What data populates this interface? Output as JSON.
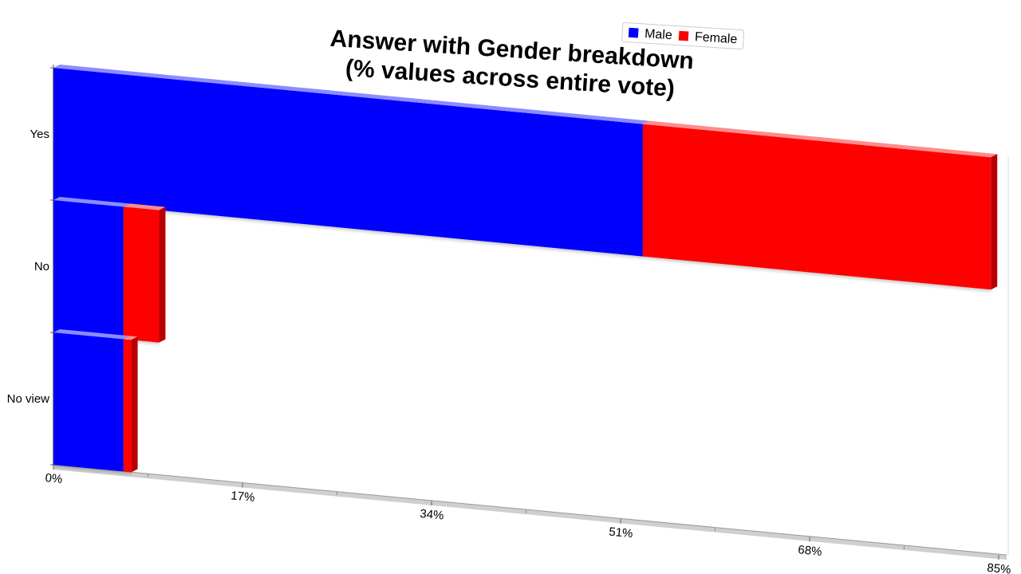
{
  "chart_data": {
    "type": "bar",
    "orientation": "horizontal",
    "stacked": true,
    "title_lines": [
      "Answer with Gender breakdown",
      "(% values across entire vote)"
    ],
    "categories": [
      "Yes",
      "No",
      "No view"
    ],
    "series": [
      {
        "name": "Male",
        "color": "#0000ff",
        "values": [
          53,
          6.3,
          6.3
        ]
      },
      {
        "name": "Female",
        "color": "#ff0000",
        "values": [
          31.3,
          3.2,
          0.7
        ]
      }
    ],
    "xlim": [
      0,
      85
    ],
    "x_ticks": [
      "0%",
      "17%",
      "34%",
      "51%",
      "68%",
      "85%"
    ],
    "legend_position": "top",
    "grid": false,
    "perspective": "3d"
  }
}
